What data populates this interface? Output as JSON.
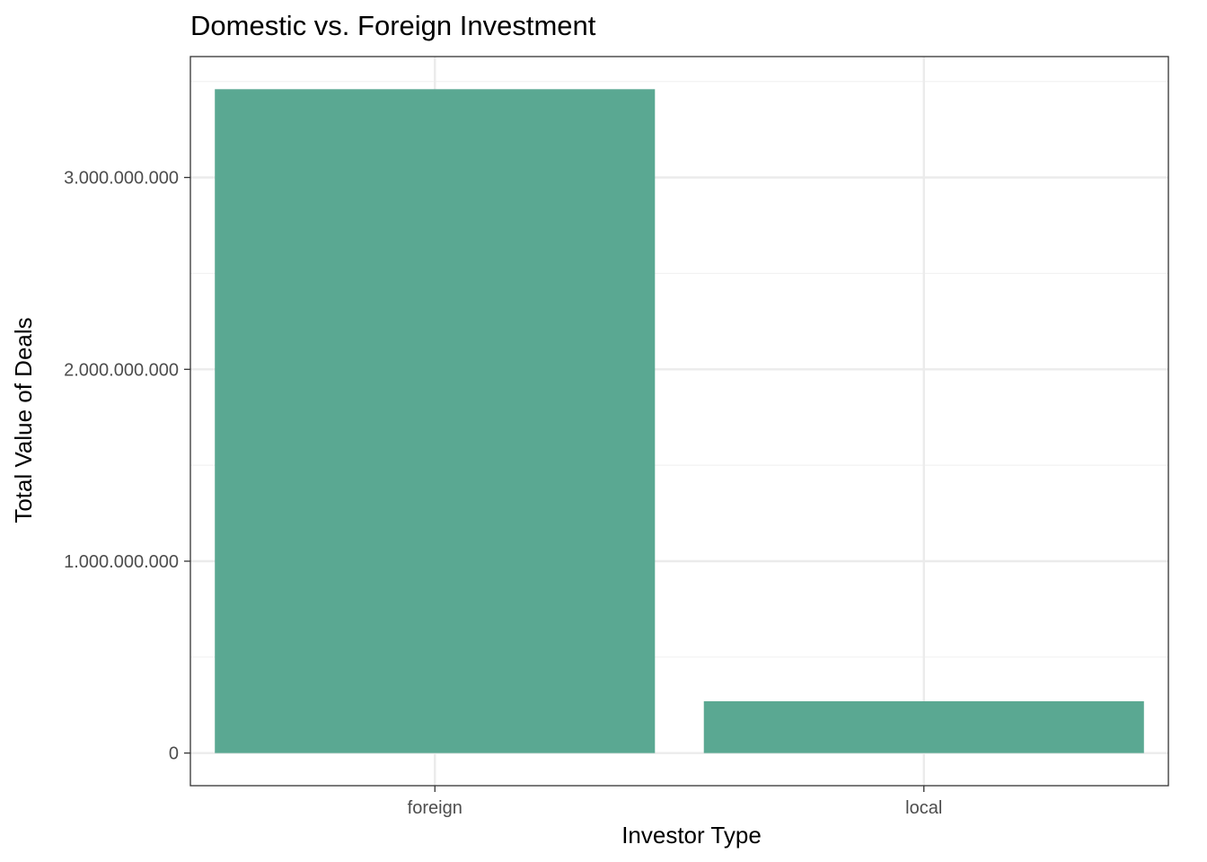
{
  "chart_data": {
    "type": "bar",
    "title": "Domestic vs. Foreign Investment",
    "xlabel": "Investor Type",
    "ylabel": "Total Value of Deals",
    "categories": [
      "foreign",
      "local"
    ],
    "values": [
      3460000000,
      270000000
    ],
    "ylim": [
      -170000000,
      3630000000
    ],
    "yticks": [
      0,
      1000000000,
      2000000000,
      3000000000
    ],
    "ytick_labels": [
      "0",
      "1.000.000.000",
      "2.000.000.000",
      "3.000.000.000"
    ],
    "grid": true,
    "legend": "none",
    "theme": "bw",
    "colors": {
      "bar": "#5aa892",
      "grid_major": "#ebebeb",
      "grid_minor": "#f2f2f2",
      "panel_border": "#333333"
    }
  }
}
